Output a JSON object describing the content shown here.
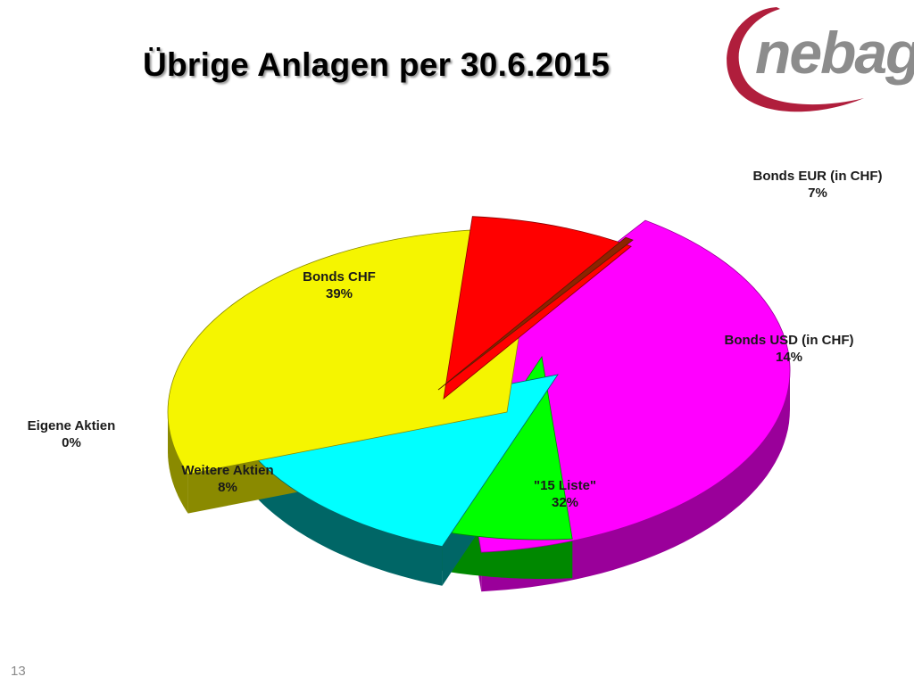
{
  "slide": {
    "title": "Übrige Anlagen per 30.6.2015",
    "page_number": "13"
  },
  "logo": {
    "text": "nebag",
    "colors": {
      "text": "#8c8c8c",
      "swoosh": "#b01e3c"
    }
  },
  "chart_data": {
    "type": "pie",
    "style": "3d-exploded",
    "title": "Übrige Anlagen per 30.6.2015",
    "unit": "%",
    "slices": [
      {
        "key": "bonds-chf",
        "label": "Bonds CHF",
        "value_label": "39%",
        "value": 39,
        "color": "#ff00ff",
        "side_color": "#9a009a"
      },
      {
        "key": "bonds-eur",
        "label": "Bonds EUR (in CHF)",
        "value_label": "7%",
        "value": 7,
        "color": "#00ff00",
        "side_color": "#008800"
      },
      {
        "key": "bonds-usd",
        "label": "Bonds USD (in CHF)",
        "value_label": "14%",
        "value": 14,
        "color": "#00ffff",
        "side_color": "#006666"
      },
      {
        "key": "15-liste",
        "label": "\"15 Liste\"",
        "value_label": "32%",
        "value": 32,
        "color": "#f5f500",
        "side_color": "#8a8a00"
      },
      {
        "key": "weitere-aktien",
        "label": "Weitere Aktien",
        "value_label": "8%",
        "value": 8,
        "color": "#ff0000",
        "side_color": "#8a0000"
      },
      {
        "key": "eigene-aktien",
        "label": "Eigene Aktien",
        "value_label": "0%",
        "value": 0.4,
        "color": "#8b2500",
        "side_color": "#5a1800"
      }
    ]
  }
}
